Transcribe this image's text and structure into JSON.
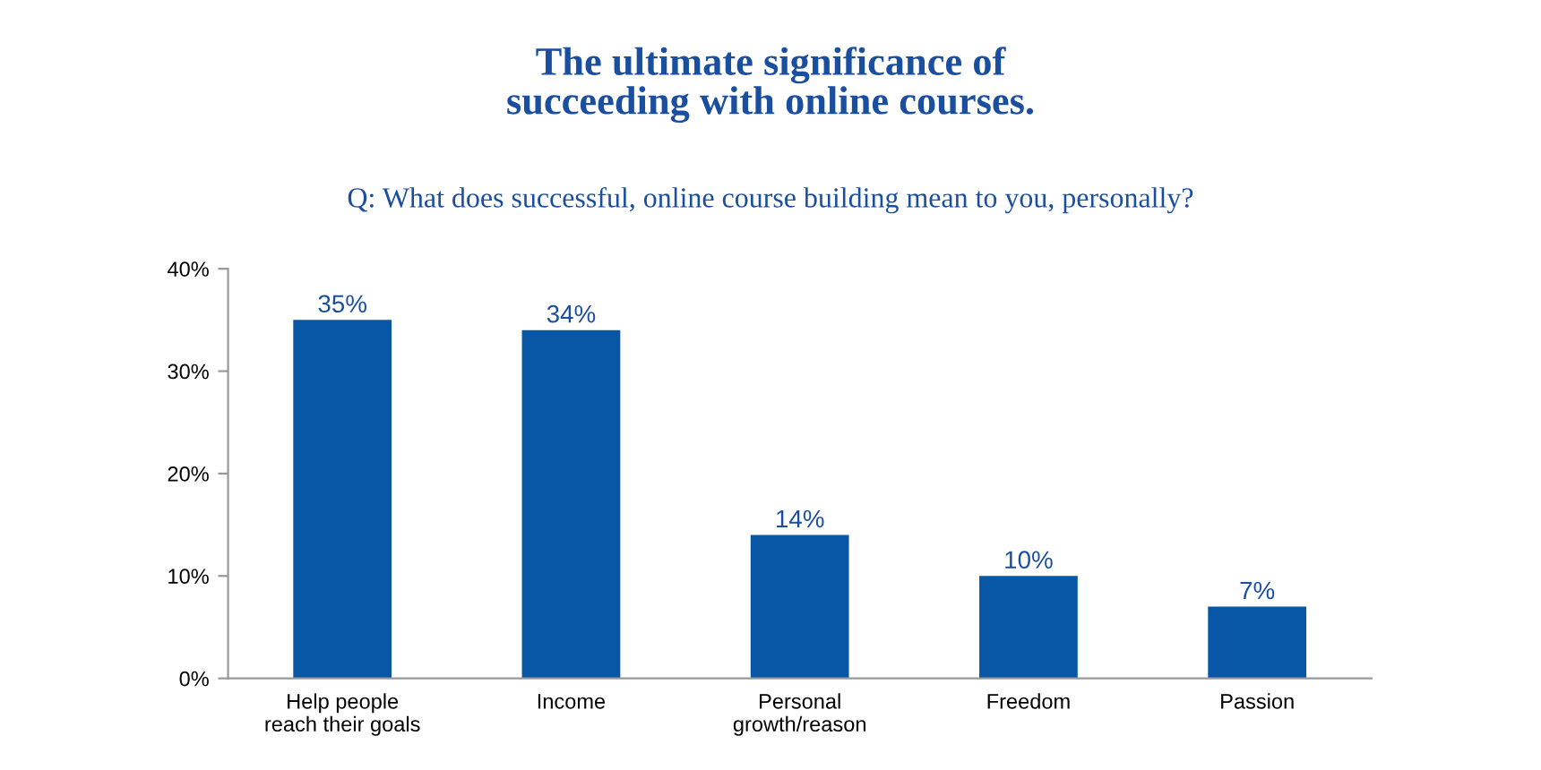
{
  "chart_data": {
    "type": "bar",
    "title": "The ultimate significance of\nsucceeding with online courses.",
    "subtitle": "Q: What does successful, online course building mean to you, personally?",
    "categories": [
      "Help people\nreach their goals",
      "Income",
      "Personal\ngrowth/reason",
      "Freedom",
      "Passion"
    ],
    "values": [
      35,
      34,
      14,
      10,
      7
    ],
    "value_labels": [
      "35%",
      "34%",
      "14%",
      "10%",
      "7%"
    ],
    "color": "#0757a6",
    "ylim": [
      0,
      40
    ],
    "yticks": [
      {
        "value": 0,
        "label": "0%"
      },
      {
        "value": 10,
        "label": "10%"
      },
      {
        "value": 20,
        "label": "20%"
      },
      {
        "value": 30,
        "label": "30%"
      },
      {
        "value": 40,
        "label": "40%"
      }
    ],
    "grid": false,
    "legend": false
  }
}
